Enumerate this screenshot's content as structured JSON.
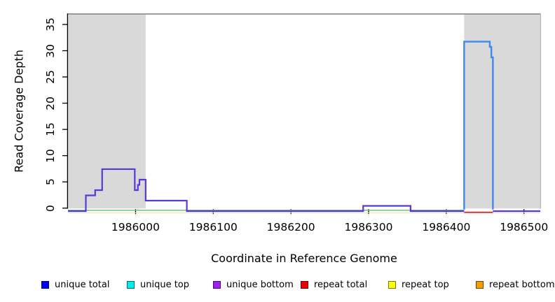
{
  "chart_data": {
    "type": "line",
    "subtype": "step-coverage",
    "title": "",
    "xlabel": "Coordinate in Reference Genome",
    "ylabel": "Read Coverage Depth",
    "xlim": [
      1985913,
      1986521
    ],
    "ylim": [
      0,
      37
    ],
    "grid": false,
    "x_ticks": [
      1986000,
      1986100,
      1986200,
      1986300,
      1986400,
      1986500
    ],
    "y_ticks": [
      0,
      5,
      10,
      15,
      20,
      25,
      30,
      35
    ],
    "shaded_regions": [
      {
        "x0": 1985913,
        "x1": 1986013,
        "color": "#d9d9d9"
      },
      {
        "x0": 1986423,
        "x1": 1986521,
        "color": "#d9d9d9"
      }
    ],
    "series": [
      {
        "name": "repeat top and bottom baseline",
        "color": "#efe0b0",
        "width": 1.2,
        "segments": [
          [
            1985913,
            1986521,
            0
          ]
        ]
      },
      {
        "name": "unique top baseline",
        "color": "#6cc473",
        "width": 1.5,
        "segments": [
          [
            1985913,
            1986423,
            0
          ]
        ]
      },
      {
        "name": "unique total and bottom",
        "color": "#5838d8",
        "width": 2.2,
        "segments": [
          [
            1985913,
            1985936,
            0
          ],
          [
            1985936,
            1985948,
            3
          ],
          [
            1985948,
            1985957,
            4
          ],
          [
            1985957,
            1985999,
            8
          ],
          [
            1985999,
            1986003,
            4
          ],
          [
            1986003,
            1986005,
            5
          ],
          [
            1986005,
            1986013,
            6
          ],
          [
            1986013,
            1986066,
            2
          ],
          [
            1986066,
            1986293,
            0
          ],
          [
            1986293,
            1986354,
            1
          ],
          [
            1986354,
            1986423,
            0
          ],
          [
            1986460,
            1986521,
            0
          ]
        ]
      },
      {
        "name": "repeat total",
        "color": "#e03434",
        "width": 2.0,
        "segments": [
          [
            1986423,
            1986460,
            0
          ]
        ]
      },
      {
        "name": "unique total and top peak",
        "color": "#3f88ef",
        "width": 2.4,
        "drop_to_zero": true,
        "segments": [
          [
            1986423,
            1986456,
            32
          ],
          [
            1986456,
            1986458,
            31
          ],
          [
            1986458,
            1986460,
            29
          ]
        ]
      }
    ]
  },
  "legend": {
    "items": [
      {
        "label": "unique total",
        "color": "#0000ee"
      },
      {
        "label": "unique top",
        "color": "#00eeee"
      },
      {
        "label": "unique bottom",
        "color": "#a020f0"
      },
      {
        "label": "repeat total",
        "color": "#ee0000"
      },
      {
        "label": "repeat top",
        "color": "#ffff00"
      },
      {
        "label": "repeat bottom",
        "color": "#f49c00"
      }
    ]
  }
}
